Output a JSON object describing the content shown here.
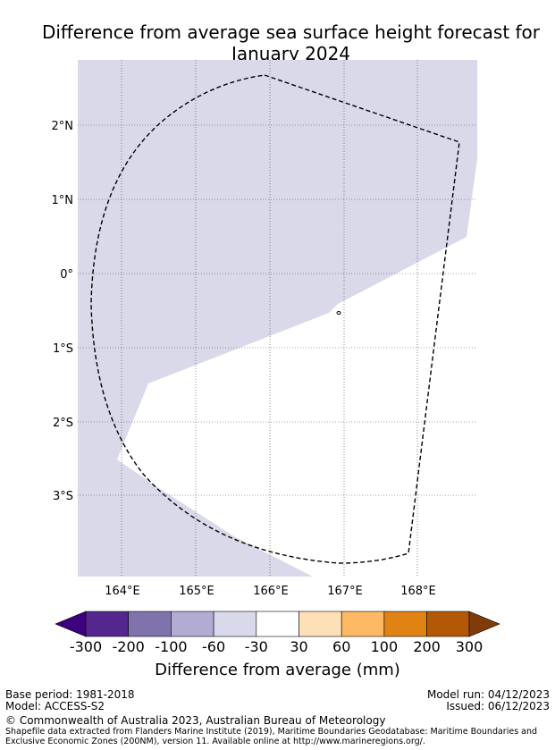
{
  "title_line1": "Difference from average sea surface height forecast for",
  "title_line2": "January 2024",
  "map": {
    "lat_labels": [
      "2°N",
      "1°N",
      "0°",
      "1°S",
      "2°S",
      "3°S"
    ],
    "lon_labels": [
      "164°E",
      "165°E",
      "166°E",
      "167°E",
      "168°E"
    ],
    "ocean_color": "#d9d9ea",
    "land_color": "#ffffff",
    "eez_boundary": "dashed"
  },
  "colorbar": {
    "label": "Difference from average (mm)",
    "ticks": [
      "-300",
      "-200",
      "-100",
      "-60",
      "-30",
      "30",
      "60",
      "100",
      "200",
      "300"
    ],
    "colors": [
      "#3f007d",
      "#54278f",
      "#8073ac",
      "#b2abd2",
      "#d8daeb",
      "#ffffff",
      "#fee0b6",
      "#fdb863",
      "#e08214",
      "#b35806",
      "#7f3b08"
    ]
  },
  "footer": {
    "base_period": "Base period: 1981-2018",
    "model": "Model: ACCESS-S2",
    "model_run": "Model run: 04/12/2023",
    "issued": "Issued: 06/12/2023",
    "copyright": "© Commonwealth of Australia 2023, Australian Bureau of Meteorology",
    "shapefile_line1": "Shapefile data extracted from Flanders Marine Institute (2019), Maritime Boundaries Geodatabase: Maritime Boundaries and",
    "shapefile_line2": "Exclusive Economic Zones (200NM), version 11. Available online at http://www.marineregions.org/."
  }
}
